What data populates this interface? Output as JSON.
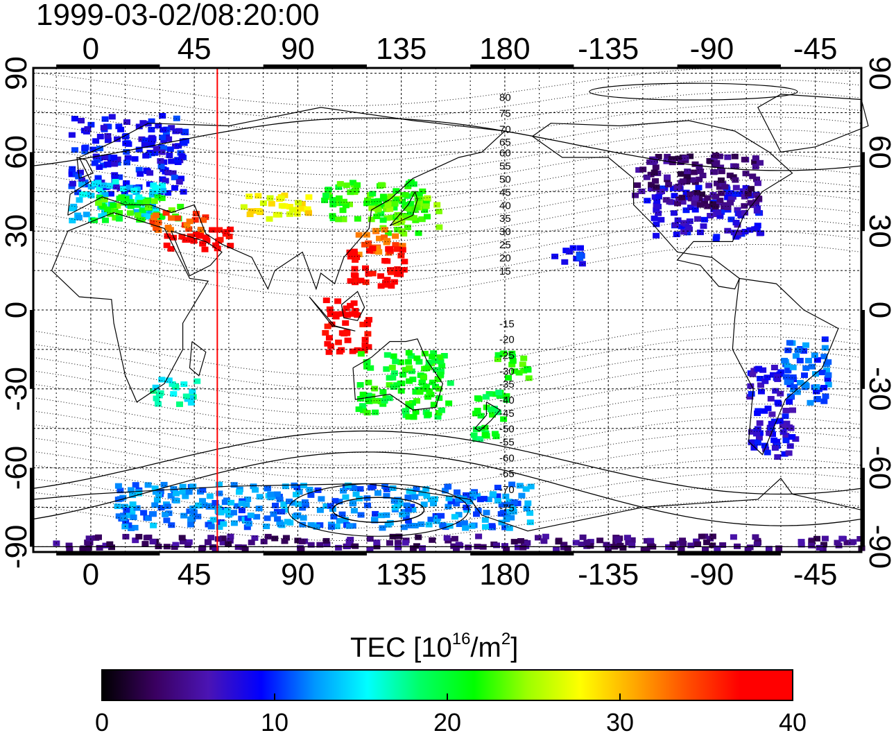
{
  "title": "1999-03-02/08:20:00",
  "colors": {
    "terminator": "#ff0000",
    "coast": "#000000",
    "grid": "#000000"
  },
  "axes": {
    "lon_ticks": [
      "0",
      "45",
      "90",
      "135",
      "180",
      "-135",
      "-90",
      "-45"
    ],
    "lon_tick_values": [
      0,
      45,
      90,
      135,
      180,
      225,
      270,
      315
    ],
    "lat_ticks_left": [
      "90",
      "60",
      "30",
      "0",
      "-30",
      "-60",
      "-90"
    ],
    "lat_ticks_right": [
      "90",
      "60",
      "30",
      "0",
      "-30",
      "-60",
      "-90"
    ],
    "lat_tick_values": [
      90,
      60,
      30,
      0,
      -30,
      -60,
      -90
    ],
    "lon_range": [
      -25,
      335
    ],
    "lat_range": [
      -92,
      92
    ]
  },
  "contour_labels": [
    "80",
    "75",
    "70",
    "65",
    "60",
    "55",
    "50",
    "45",
    "40",
    "35",
    "30",
    "25",
    "20",
    "15",
    "-15",
    "-20",
    "-25",
    "-30",
    "-35",
    "-40",
    "-45",
    "-50",
    "-55",
    "-60",
    "-65",
    "-70",
    "-75"
  ],
  "contour_label_lats": [
    81,
    75,
    69,
    64,
    60,
    55,
    50,
    45,
    40,
    35,
    30,
    25,
    20,
    15,
    -5,
    -11,
    -17,
    -23,
    -28,
    -34,
    -39,
    -45,
    -50,
    -56,
    -62,
    -68,
    -75
  ],
  "terminator_lon": 55,
  "colorbar": {
    "title_main": "TEC  [10",
    "title_sup1": "16",
    "title_mid": "/m",
    "title_sup2": "2",
    "title_end": "]",
    "ticks": [
      "0",
      "10",
      "20",
      "30",
      "40"
    ],
    "tick_values": [
      0,
      10,
      20,
      30,
      40
    ],
    "range": [
      0,
      40
    ],
    "stops": [
      "#000000",
      "#3a0060",
      "#4b14b4",
      "#0000ff",
      "#0096ff",
      "#00ffff",
      "#00ff64",
      "#00ff00",
      "#9bff00",
      "#ffff00",
      "#ffaa00",
      "#ff5000",
      "#ff0000",
      "#ff0000"
    ]
  },
  "chart_data": {
    "type": "heatmap",
    "title": "1999-03-02/08:20:00",
    "xlabel": "",
    "ylabel": "",
    "colorbar_label": "TEC [10^16/m^2]",
    "xlim": [
      -25,
      335
    ],
    "ylim": [
      -92,
      92
    ],
    "value_range": [
      0,
      40
    ],
    "regions": [
      {
        "lon": [
          -10,
          40
        ],
        "lat": [
          45,
          75
        ],
        "tec": 9
      },
      {
        "lon": [
          -10,
          30
        ],
        "lat": [
          35,
          50
        ],
        "tec": 14
      },
      {
        "lon": [
          0,
          40
        ],
        "lat": [
          35,
          45
        ],
        "tec": 22
      },
      {
        "lon": [
          25,
          50
        ],
        "lat": [
          30,
          38
        ],
        "tec": 34
      },
      {
        "lon": [
          30,
          60
        ],
        "lat": [
          24,
          32
        ],
        "tec": 38
      },
      {
        "lon": [
          65,
          95
        ],
        "lat": [
          35,
          45
        ],
        "tec": 28
      },
      {
        "lon": [
          100,
          145
        ],
        "lat": [
          35,
          50
        ],
        "tec": 22
      },
      {
        "lon": [
          120,
          150
        ],
        "lat": [
          30,
          45
        ],
        "tec": 23
      },
      {
        "lon": [
          115,
          135
        ],
        "lat": [
          22,
          32
        ],
        "tec": 33
      },
      {
        "lon": [
          110,
          135
        ],
        "lat": [
          10,
          25
        ],
        "tec": 38
      },
      {
        "lon": [
          100,
          120
        ],
        "lat": [
          -15,
          5
        ],
        "tec": 38
      },
      {
        "lon": [
          115,
          155
        ],
        "lat": [
          -40,
          -15
        ],
        "tec": 21
      },
      {
        "lon": [
          165,
          180
        ],
        "lat": [
          -48,
          -30
        ],
        "tec": 20
      },
      {
        "lon": [
          175,
          190
        ],
        "lat": [
          -25,
          -15
        ],
        "tec": 22
      },
      {
        "lon": [
          240,
          290
        ],
        "lat": [
          28,
          48
        ],
        "tec": 8
      },
      {
        "lon": [
          235,
          290
        ],
        "lat": [
          40,
          60
        ],
        "tec": 4
      },
      {
        "lon": [
          200,
          215
        ],
        "lat": [
          18,
          25
        ],
        "tec": 9
      },
      {
        "lon": [
          285,
          305
        ],
        "lat": [
          -55,
          -20
        ],
        "tec": 8
      },
      {
        "lon": [
          300,
          320
        ],
        "lat": [
          -35,
          -10
        ],
        "tec": 11
      },
      {
        "lon": [
          -20,
          335
        ],
        "lat": [
          -90,
          -85
        ],
        "tec": 4
      },
      {
        "lon": [
          10,
          190
        ],
        "lat": [
          -82,
          -65
        ],
        "tec": 12
      },
      {
        "lon": [
          25,
          45
        ],
        "lat": [
          -35,
          -25
        ],
        "tec": 16
      }
    ]
  }
}
